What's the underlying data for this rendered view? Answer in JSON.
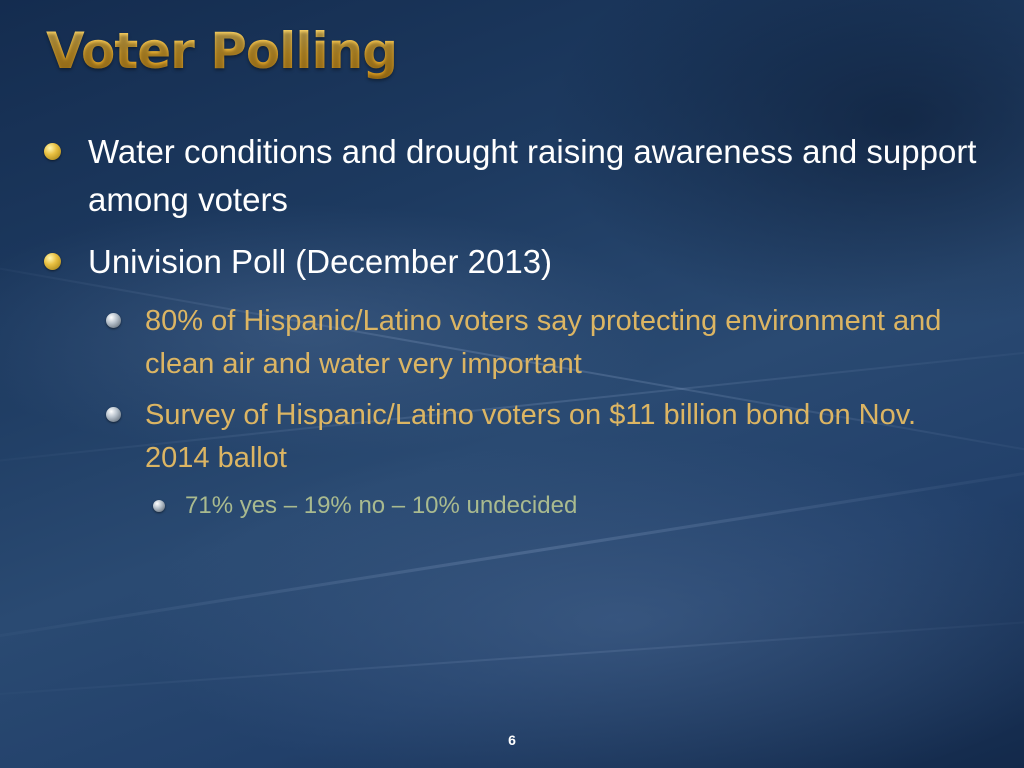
{
  "slide": {
    "title": "Voter Polling",
    "page_number": "6",
    "bullets": [
      {
        "text": "Water conditions and drought raising awareness and support among voters",
        "icon": "gold-sphere-bullet-icon"
      },
      {
        "text": "Univision Poll (December 2013)",
        "icon": "gold-sphere-bullet-icon",
        "sub_bullets": [
          {
            "text": "80% of Hispanic/Latino voters say protecting environment and clean air and water very important",
            "icon": "silver-sphere-bullet-icon"
          },
          {
            "text": "Survey of Hispanic/Latino voters on $11 billion bond on Nov. 2014 ballot",
            "icon": "silver-sphere-bullet-icon",
            "sub_bullets": [
              {
                "text": "71% yes – 19% no – 10% undecided",
                "icon": "silver-sphere-bullet-icon"
              }
            ]
          }
        ]
      }
    ]
  },
  "colors": {
    "title": "#f0b732",
    "level1_text": "#ffffff",
    "level2_text": "#dcb563",
    "level3_text": "#a9ba8f",
    "background": "#1d3a60"
  }
}
